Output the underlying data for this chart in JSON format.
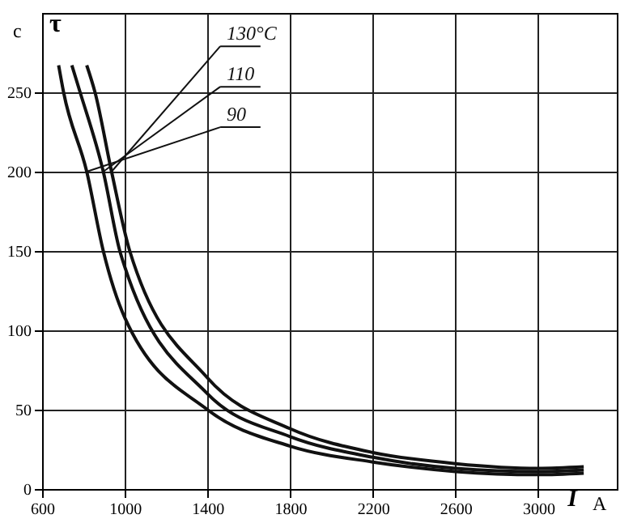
{
  "chart_data": {
    "type": "line",
    "ylabel": "τ",
    "xlabel": "I",
    "annotations": [
      "c",
      "A"
    ],
    "xlim": [
      600,
      3380
    ],
    "xticks": [
      600,
      1000,
      1400,
      1800,
      2200,
      2600,
      3000
    ],
    "ylim": [
      0,
      300
    ],
    "yticks": [
      0,
      50,
      100,
      150,
      200,
      250
    ],
    "grid": true,
    "line_style": "solid",
    "legend": "top",
    "series": [
      {
        "name": "130°C",
        "color": "#111111",
        "x": [
          816,
          856,
          936,
          1024,
          1400,
          1800,
          2200,
          2600,
          3000,
          3220
        ],
        "values": [
          267,
          250,
          200,
          150,
          70,
          38,
          23,
          16,
          13,
          14
        ]
      },
      {
        "name": "110",
        "color": "#111111",
        "x": [
          744,
          784,
          896,
          976,
          1000,
          1400,
          1800,
          2200,
          2600,
          3000,
          3220
        ],
        "values": [
          267,
          250,
          200,
          150,
          140,
          60,
          33,
          20,
          13,
          11,
          12
        ]
      },
      {
        "name": "90",
        "color": "#111111",
        "x": [
          680,
          704,
          816,
          896,
          1000,
          1400,
          1800,
          2200,
          2600,
          3000,
          3220
        ],
        "values": [
          267,
          250,
          200,
          150,
          108,
          50,
          27,
          17,
          11,
          9,
          10
        ]
      }
    ]
  }
}
